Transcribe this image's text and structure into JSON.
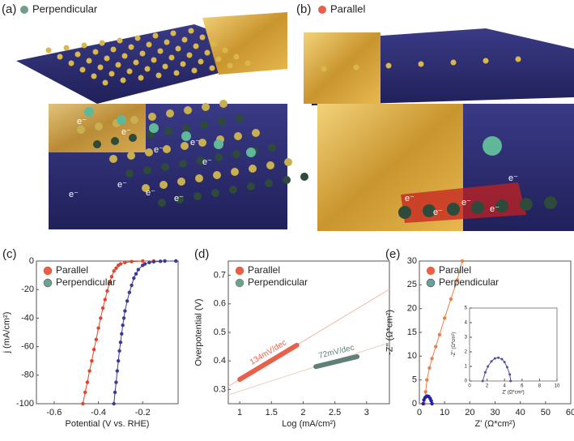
{
  "panel_a": {
    "label": "(a)",
    "legend": "Perpendicular",
    "electrons": [
      "e⁻",
      "e⁻",
      "e⁻",
      "e⁻",
      "e⁻",
      "e⁻",
      "e⁻",
      "e⁻",
      "e⁻"
    ]
  },
  "panel_b": {
    "label": "(b)",
    "legend": "Parallel",
    "electrons": [
      "e⁻",
      "e⁻",
      "e⁻",
      "e⁻",
      "e⁻"
    ]
  },
  "chart_data": [
    {
      "type": "line",
      "label": "(c)",
      "xlabel": "Potential (V vs. RHE)",
      "ylabel": "j (mA/cm²)",
      "xlim": [
        -0.68,
        -0.04
      ],
      "xticks": [
        -0.6,
        -0.4,
        -0.2
      ],
      "ylim": [
        -100,
        0
      ],
      "yticks": [
        -100,
        -80,
        -60,
        -40,
        -20,
        0
      ],
      "markers": true,
      "series": [
        {
          "name": "Parallel",
          "color": "#e0442c",
          "legend_color": "#e8604a",
          "x": [
            -0.47,
            -0.46,
            -0.45,
            -0.44,
            -0.43,
            -0.42,
            -0.41,
            -0.4,
            -0.39,
            -0.38,
            -0.37,
            -0.36,
            -0.35,
            -0.34,
            -0.33,
            -0.32,
            -0.31,
            -0.3,
            -0.28,
            -0.25,
            -0.2,
            -0.15,
            -0.1,
            -0.05
          ],
          "values": [
            -100,
            -92,
            -85,
            -77,
            -70,
            -62,
            -55,
            -47,
            -40,
            -33,
            -27,
            -21,
            -15,
            -11,
            -7,
            -5,
            -3,
            -2,
            -1,
            -0.4,
            0,
            0,
            0,
            0
          ]
        },
        {
          "name": "Perpendicular",
          "color": "#3b3b96",
          "legend_color": "#6fa08a",
          "x": [
            -0.33,
            -0.325,
            -0.32,
            -0.315,
            -0.31,
            -0.305,
            -0.3,
            -0.295,
            -0.29,
            -0.285,
            -0.28,
            -0.27,
            -0.26,
            -0.25,
            -0.24,
            -0.23,
            -0.22,
            -0.2,
            -0.19,
            -0.17,
            -0.15,
            -0.12,
            -0.1,
            -0.05
          ],
          "values": [
            -100,
            -92,
            -85,
            -77,
            -70,
            -63,
            -57,
            -51,
            -45,
            -40,
            -35,
            -28,
            -22,
            -17,
            -12,
            -9,
            -6,
            -3,
            -2,
            -1,
            -0.5,
            -0.2,
            0,
            0
          ]
        }
      ]
    },
    {
      "type": "line",
      "label": "(d)",
      "xlabel": "Log (mA/cm²)",
      "ylabel": "Overpotential (V)",
      "xlim": [
        0.82,
        3.36
      ],
      "xticks": [
        1.0,
        1.5,
        2.0,
        2.5,
        3.0
      ],
      "ylim": [
        0.25,
        0.75
      ],
      "yticks": [
        0.3,
        0.4,
        0.5,
        0.6,
        0.7
      ],
      "line_width": 6,
      "series": [
        {
          "name": "Parallel",
          "color": "#e8604a",
          "legend_color": "#e8604a",
          "slope_label": "134mV/dec",
          "x": [
            1.0,
            1.9
          ],
          "values": [
            0.335,
            0.455
          ]
        },
        {
          "name": "Perpendicular",
          "color": "#5f7f78",
          "legend_color": "#6fa08a",
          "slope_label": "72mV/dec",
          "x": [
            2.2,
            2.85
          ],
          "values": [
            0.38,
            0.415
          ]
        }
      ],
      "fits": [
        {
          "color": "#f2b8a8",
          "x": [
            0.82,
            3.36
          ],
          "values": [
            0.311,
            0.651
          ]
        },
        {
          "color": "#e8d0c0",
          "x": [
            0.82,
            3.36
          ],
          "values": [
            0.281,
            0.464
          ]
        }
      ]
    },
    {
      "type": "line",
      "label": "(e)",
      "xlabel": "Z' (Ω*cm²)",
      "ylabel": "-Z'' (Ω*cm²)",
      "xlim": [
        0,
        60
      ],
      "xticks": [
        0,
        10,
        20,
        30,
        40,
        50,
        60
      ],
      "ylim": [
        0,
        30
      ],
      "yticks": [
        0,
        5,
        10,
        15,
        20,
        25,
        30
      ],
      "markers": true,
      "series": [
        {
          "name": "Parallel",
          "color": "#e8804a",
          "legend_color": "#e8604a",
          "x": [
            2,
            2.5,
            3,
            4,
            5,
            6.5,
            8,
            10,
            12.5,
            15,
            17
          ],
          "values": [
            0,
            2.5,
            5,
            7.5,
            9.5,
            12,
            14.5,
            18,
            22,
            26,
            30
          ]
        },
        {
          "name": "Perpendicular",
          "color": "#2020b0",
          "legend_color": "#6fa08a",
          "x": [
            1.5,
            1.8,
            2.3,
            3,
            3.7,
            4.3,
            4.7,
            5
          ],
          "values": [
            0,
            0.8,
            1.3,
            1.6,
            1.5,
            1.1,
            0.6,
            0
          ]
        }
      ]
    },
    {
      "type": "line",
      "xlabel": "Z' (Ω*cm²)",
      "ylabel": "-Z'' (Ω*cm²)",
      "xlim": [
        0,
        10
      ],
      "xticks": [
        0,
        2,
        4,
        6,
        8,
        10
      ],
      "ylim": [
        0,
        5
      ],
      "yticks": [
        0,
        1,
        2,
        3,
        4,
        5
      ],
      "markers": true,
      "series": [
        {
          "color": "#5050a0",
          "x": [
            1.5,
            1.8,
            2.1,
            2.5,
            2.9,
            3.3,
            3.7,
            4.0,
            4.3,
            4.6,
            4.7
          ],
          "values": [
            0,
            0.6,
            1.0,
            1.35,
            1.55,
            1.6,
            1.5,
            1.3,
            0.95,
            0.45,
            0
          ]
        }
      ]
    }
  ]
}
